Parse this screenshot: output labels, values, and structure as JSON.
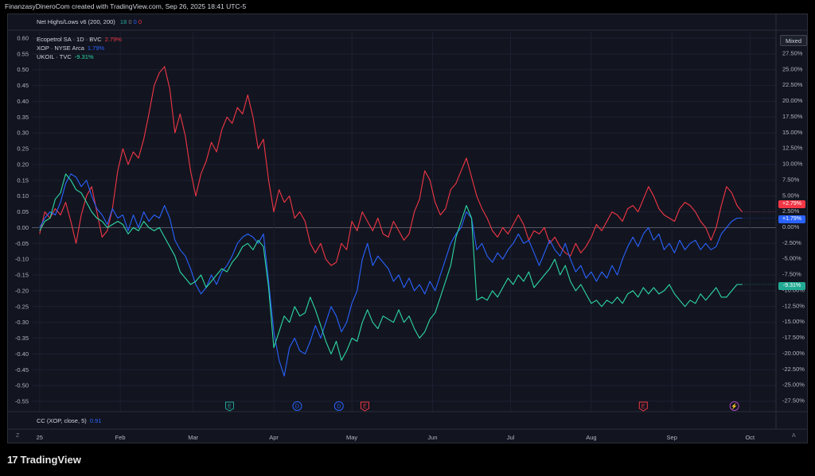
{
  "header": {
    "creator_line": "FinanzasyDineroCom created with TradingView.com, Sep 26, 2025 18:41 UTC-5"
  },
  "indicator_top": {
    "label": "Net Highs/Lows v6 (200, 200)",
    "values": [
      "18",
      "0",
      "0",
      "0"
    ],
    "colors": [
      "#26a69a",
      "#787b86",
      "#2962ff",
      "#f23645"
    ]
  },
  "legend": [
    {
      "name": "Ecopetrol SA · 1D · BVC",
      "value": "2.79%",
      "color": "#f23645"
    },
    {
      "name": "XOP · NYSE Arca",
      "value": "1.79%",
      "color": "#2962ff"
    },
    {
      "name": "UKOIL · TVC",
      "value": "-9.31%",
      "color": "#2ed8a3"
    }
  ],
  "indicator_bottom": {
    "label": "CC (XOP, close, 5)",
    "value": "0.91",
    "color": "#2962ff"
  },
  "scale_mode_label": "Mixed",
  "price_badges": [
    {
      "text": "+2.79%",
      "color": "#f23645",
      "value": 2.79
    },
    {
      "text": "+1.79%",
      "color": "#2962ff",
      "value": 1.79
    },
    {
      "text": "-9.31%",
      "color": "#22ab94",
      "value": -9.31
    }
  ],
  "axis_corner_labels": {
    "left": "Z",
    "right": "A"
  },
  "event_markers": [
    {
      "symbol": "E",
      "color": "#26a69a",
      "x": 74
    },
    {
      "symbol": "D",
      "color": "#2962ff",
      "x": 100
    },
    {
      "symbol": "D",
      "color": "#2962ff",
      "x": 116
    },
    {
      "symbol": "E",
      "color": "#f23645",
      "x": 126
    },
    {
      "symbol": "E",
      "color": "#f23645",
      "x": 233
    },
    {
      "symbol": "⚡",
      "color": "#ab47bc",
      "x": 268
    }
  ],
  "logo": {
    "text": "TradingView",
    "mark": "17",
    "color": "#e6e6e6"
  },
  "chart_data": {
    "type": "line",
    "x_unit": "calendar day of 2025 (day 1 = Jan 1)",
    "x_ticks": [
      {
        "label": "25",
        "x": 1
      },
      {
        "label": "Feb",
        "x": 32
      },
      {
        "label": "Mar",
        "x": 60
      },
      {
        "label": "Apr",
        "x": 91
      },
      {
        "label": "May",
        "x": 121
      },
      {
        "label": "Jun",
        "x": 152
      },
      {
        "label": "Jul",
        "x": 182
      },
      {
        "label": "Aug",
        "x": 213
      },
      {
        "label": "Sep",
        "x": 244
      },
      {
        "label": "Oct",
        "x": 274
      }
    ],
    "xlim": [
      -2,
      284
    ],
    "left_axis": {
      "ticks": [
        0.6,
        0.55,
        0.5,
        0.45,
        0.4,
        0.35,
        0.3,
        0.25,
        0.2,
        0.15,
        0.1,
        0.05,
        0.0,
        -0.05,
        -0.1,
        -0.15,
        -0.2,
        -0.25,
        -0.3,
        -0.35,
        -0.4,
        -0.45,
        -0.5,
        -0.55
      ],
      "tick_labels": [
        "0.60",
        "0.55",
        "0.50",
        "0.45",
        "0.40",
        "0.35",
        "0.30",
        "0.25",
        "0.20",
        "0.15",
        "0.10",
        "0.05",
        "0.00",
        "-0.05",
        "-0.10",
        "-0.15",
        "-0.20",
        "-0.25",
        "-0.30",
        "-0.35",
        "-0.40",
        "-0.45",
        "-0.50",
        "-0.55"
      ],
      "range": [
        -0.55,
        0.6
      ]
    },
    "right_axis": {
      "ticks": [
        27.5,
        25,
        22.5,
        20,
        17.5,
        15,
        12.5,
        10,
        7.5,
        5,
        2.5,
        0,
        -2.5,
        -5,
        -7.5,
        -10,
        -12.5,
        -15,
        -17.5,
        -20,
        -22.5,
        -25,
        -27.5
      ],
      "tick_labels": [
        "27.50%",
        "25.00%",
        "22.50%",
        "20.00%",
        "17.50%",
        "15.00%",
        "12.50%",
        "10.00%",
        "7.50%",
        "5.00%",
        "2.50%",
        "0.00%",
        "-2.50%",
        "-5.00%",
        "-7.50%",
        "-10.00%",
        "-12.50%",
        "-15.00%",
        "-17.50%",
        "-20.00%",
        "-22.50%",
        "-25.00%",
        "-27.50%"
      ],
      "range": [
        -27.5,
        27.5
      ]
    },
    "series": [
      {
        "name": "Ecopetrol SA · 1D · BVC",
        "color": "#f23645",
        "x": [
          1,
          3,
          5,
          7,
          9,
          11,
          13,
          15,
          17,
          19,
          21,
          23,
          25,
          27,
          29,
          31,
          33,
          35,
          37,
          39,
          41,
          43,
          45,
          47,
          49,
          51,
          53,
          55,
          57,
          59,
          61,
          63,
          65,
          67,
          69,
          71,
          73,
          75,
          77,
          79,
          81,
          83,
          85,
          87,
          89,
          91,
          93,
          95,
          97,
          99,
          101,
          103,
          105,
          107,
          109,
          111,
          113,
          115,
          117,
          119,
          121,
          123,
          125,
          127,
          129,
          131,
          133,
          135,
          137,
          139,
          141,
          143,
          145,
          147,
          149,
          151,
          153,
          155,
          157,
          159,
          161,
          163,
          165,
          167,
          169,
          171,
          173,
          175,
          177,
          179,
          181,
          183,
          185,
          187,
          189,
          191,
          193,
          195,
          197,
          199,
          201,
          203,
          205,
          207,
          209,
          211,
          213,
          215,
          217,
          219,
          221,
          223,
          225,
          227,
          229,
          231,
          233,
          235,
          237,
          239,
          241,
          243,
          245,
          247,
          249,
          251,
          253,
          255,
          257,
          259,
          261,
          263,
          265,
          267,
          269,
          271
        ],
        "y": [
          -0.02,
          0.05,
          0.03,
          0.06,
          0.04,
          0.08,
          0.02,
          -0.05,
          0.04,
          0.1,
          0.13,
          0.05,
          -0.03,
          -0.01,
          0.06,
          0.18,
          0.25,
          0.2,
          0.24,
          0.22,
          0.28,
          0.36,
          0.45,
          0.49,
          0.51,
          0.44,
          0.3,
          0.36,
          0.29,
          0.18,
          0.1,
          0.17,
          0.21,
          0.27,
          0.24,
          0.31,
          0.35,
          0.33,
          0.38,
          0.36,
          0.42,
          0.35,
          0.25,
          0.28,
          0.15,
          0.05,
          0.12,
          0.08,
          0.1,
          0.03,
          0.05,
          0.02,
          -0.05,
          -0.08,
          -0.05,
          -0.1,
          -0.12,
          -0.11,
          -0.05,
          -0.07,
          0.02,
          -0.01,
          0.05,
          0.02,
          -0.01,
          0.03,
          -0.02,
          -0.03,
          0.02,
          -0.01,
          -0.04,
          -0.02,
          0.05,
          0.09,
          0.18,
          0.15,
          0.08,
          0.04,
          0.06,
          0.12,
          0.14,
          0.18,
          0.22,
          0.16,
          0.1,
          0.06,
          0.03,
          -0.01,
          -0.03,
          0.0,
          -0.02,
          0.01,
          0.04,
          0.01,
          -0.04,
          -0.01,
          -0.02,
          0.0,
          -0.05,
          -0.03,
          -0.06,
          -0.08,
          -0.09,
          -0.05,
          -0.08,
          -0.06,
          -0.03,
          0.01,
          -0.01,
          0.02,
          0.05,
          0.04,
          0.02,
          0.06,
          0.07,
          0.05,
          0.09,
          0.13,
          0.1,
          0.06,
          0.04,
          0.03,
          0.02,
          0.06,
          0.08,
          0.07,
          0.05,
          0.02,
          0.0,
          -0.04,
          0.0,
          0.07,
          0.13,
          0.11,
          0.07,
          0.05
        ],
        "last_pct": 2.79
      },
      {
        "name": "XOP · NYSE Arca",
        "color": "#2962ff",
        "x": [
          1,
          3,
          5,
          7,
          9,
          11,
          13,
          15,
          17,
          19,
          21,
          23,
          25,
          27,
          29,
          31,
          33,
          35,
          37,
          39,
          41,
          43,
          45,
          47,
          49,
          51,
          53,
          55,
          57,
          59,
          61,
          63,
          65,
          67,
          69,
          71,
          73,
          75,
          77,
          79,
          81,
          83,
          85,
          87,
          89,
          91,
          93,
          95,
          97,
          99,
          101,
          103,
          105,
          107,
          109,
          111,
          113,
          115,
          117,
          119,
          121,
          123,
          125,
          127,
          129,
          131,
          133,
          135,
          137,
          139,
          141,
          143,
          145,
          147,
          149,
          151,
          153,
          155,
          157,
          159,
          161,
          163,
          165,
          167,
          169,
          171,
          173,
          175,
          177,
          179,
          181,
          183,
          185,
          187,
          189,
          191,
          193,
          195,
          197,
          199,
          201,
          203,
          205,
          207,
          209,
          211,
          213,
          215,
          217,
          219,
          221,
          223,
          225,
          227,
          229,
          231,
          233,
          235,
          237,
          239,
          241,
          243,
          245,
          247,
          249,
          251,
          253,
          255,
          257,
          259,
          261,
          263,
          265,
          267,
          269,
          271
        ],
        "y": [
          0.0,
          0.03,
          0.05,
          0.04,
          0.08,
          0.14,
          0.17,
          0.16,
          0.13,
          0.15,
          0.1,
          0.06,
          0.04,
          0.01,
          0.06,
          0.03,
          0.04,
          -0.01,
          0.04,
          0.0,
          0.05,
          0.02,
          0.04,
          0.03,
          0.07,
          0.03,
          -0.04,
          -0.07,
          -0.09,
          -0.13,
          -0.18,
          -0.21,
          -0.19,
          -0.15,
          -0.18,
          -0.14,
          -0.12,
          -0.09,
          -0.05,
          -0.03,
          -0.02,
          -0.03,
          -0.05,
          -0.02,
          -0.17,
          -0.33,
          -0.42,
          -0.47,
          -0.38,
          -0.35,
          -0.39,
          -0.4,
          -0.36,
          -0.31,
          -0.35,
          -0.3,
          -0.25,
          -0.28,
          -0.33,
          -0.3,
          -0.24,
          -0.2,
          -0.1,
          -0.05,
          -0.12,
          -0.09,
          -0.11,
          -0.13,
          -0.17,
          -0.15,
          -0.19,
          -0.16,
          -0.2,
          -0.18,
          -0.21,
          -0.17,
          -0.2,
          -0.15,
          -0.1,
          -0.05,
          -0.02,
          0.0,
          0.05,
          0.03,
          -0.07,
          -0.05,
          -0.09,
          -0.11,
          -0.08,
          -0.1,
          -0.07,
          -0.05,
          -0.02,
          -0.05,
          -0.04,
          -0.08,
          -0.12,
          -0.08,
          -0.04,
          -0.07,
          -0.09,
          -0.05,
          -0.1,
          -0.14,
          -0.12,
          -0.16,
          -0.14,
          -0.17,
          -0.14,
          -0.16,
          -0.12,
          -0.15,
          -0.1,
          -0.06,
          -0.03,
          -0.06,
          -0.02,
          0.0,
          -0.04,
          -0.02,
          -0.07,
          -0.05,
          -0.08,
          -0.04,
          -0.07,
          -0.05,
          -0.04,
          -0.07,
          -0.05,
          -0.07,
          -0.06,
          -0.02,
          0.0,
          0.02,
          0.03,
          0.03
        ],
        "last_pct": 1.79
      },
      {
        "name": "UKOIL · TVC",
        "color": "#2ed8a3",
        "x": [
          1,
          3,
          5,
          7,
          9,
          11,
          13,
          15,
          17,
          19,
          21,
          23,
          25,
          27,
          29,
          31,
          33,
          35,
          37,
          39,
          41,
          43,
          45,
          47,
          49,
          51,
          53,
          55,
          57,
          59,
          61,
          63,
          65,
          67,
          69,
          71,
          73,
          75,
          77,
          79,
          81,
          83,
          85,
          87,
          89,
          91,
          93,
          95,
          97,
          99,
          101,
          103,
          105,
          107,
          109,
          111,
          113,
          115,
          117,
          119,
          121,
          123,
          125,
          127,
          129,
          131,
          133,
          135,
          137,
          139,
          141,
          143,
          145,
          147,
          149,
          151,
          153,
          155,
          157,
          159,
          161,
          163,
          165,
          167,
          169,
          171,
          173,
          175,
          177,
          179,
          181,
          183,
          185,
          187,
          189,
          191,
          193,
          195,
          197,
          199,
          201,
          203,
          205,
          207,
          209,
          211,
          213,
          215,
          217,
          219,
          221,
          223,
          225,
          227,
          229,
          231,
          233,
          235,
          237,
          239,
          241,
          243,
          245,
          247,
          249,
          251,
          253,
          255,
          257,
          259,
          261,
          263,
          265,
          267,
          269,
          271
        ],
        "y": [
          -0.01,
          0.02,
          0.03,
          0.09,
          0.11,
          0.17,
          0.15,
          0.12,
          0.11,
          0.08,
          0.05,
          0.03,
          0.02,
          0.0,
          0.01,
          0.02,
          0.01,
          -0.02,
          0.0,
          -0.01,
          0.02,
          0.0,
          -0.01,
          0.0,
          -0.03,
          -0.06,
          -0.09,
          -0.14,
          -0.16,
          -0.18,
          -0.17,
          -0.15,
          -0.19,
          -0.17,
          -0.15,
          -0.13,
          -0.14,
          -0.11,
          -0.09,
          -0.06,
          -0.05,
          -0.07,
          -0.04,
          -0.06,
          -0.19,
          -0.38,
          -0.33,
          -0.28,
          -0.3,
          -0.25,
          -0.28,
          -0.27,
          -0.22,
          -0.26,
          -0.31,
          -0.36,
          -0.4,
          -0.36,
          -0.42,
          -0.39,
          -0.35,
          -0.36,
          -0.3,
          -0.26,
          -0.3,
          -0.32,
          -0.28,
          -0.29,
          -0.3,
          -0.26,
          -0.3,
          -0.28,
          -0.32,
          -0.35,
          -0.33,
          -0.29,
          -0.27,
          -0.22,
          -0.17,
          -0.12,
          -0.03,
          0.02,
          0.07,
          0.03,
          -0.23,
          -0.22,
          -0.23,
          -0.2,
          -0.22,
          -0.19,
          -0.16,
          -0.18,
          -0.15,
          -0.17,
          -0.14,
          -0.19,
          -0.17,
          -0.15,
          -0.13,
          -0.1,
          -0.15,
          -0.12,
          -0.17,
          -0.2,
          -0.18,
          -0.21,
          -0.24,
          -0.23,
          -0.25,
          -0.23,
          -0.24,
          -0.22,
          -0.24,
          -0.21,
          -0.2,
          -0.22,
          -0.19,
          -0.21,
          -0.19,
          -0.21,
          -0.2,
          -0.18,
          -0.21,
          -0.23,
          -0.25,
          -0.23,
          -0.24,
          -0.21,
          -0.23,
          -0.21,
          -0.19,
          -0.22,
          -0.22,
          -0.2,
          -0.18,
          -0.18
        ],
        "last_pct": -9.31
      }
    ],
    "grid": true,
    "legend_position": "top-left",
    "zero_line": true
  }
}
